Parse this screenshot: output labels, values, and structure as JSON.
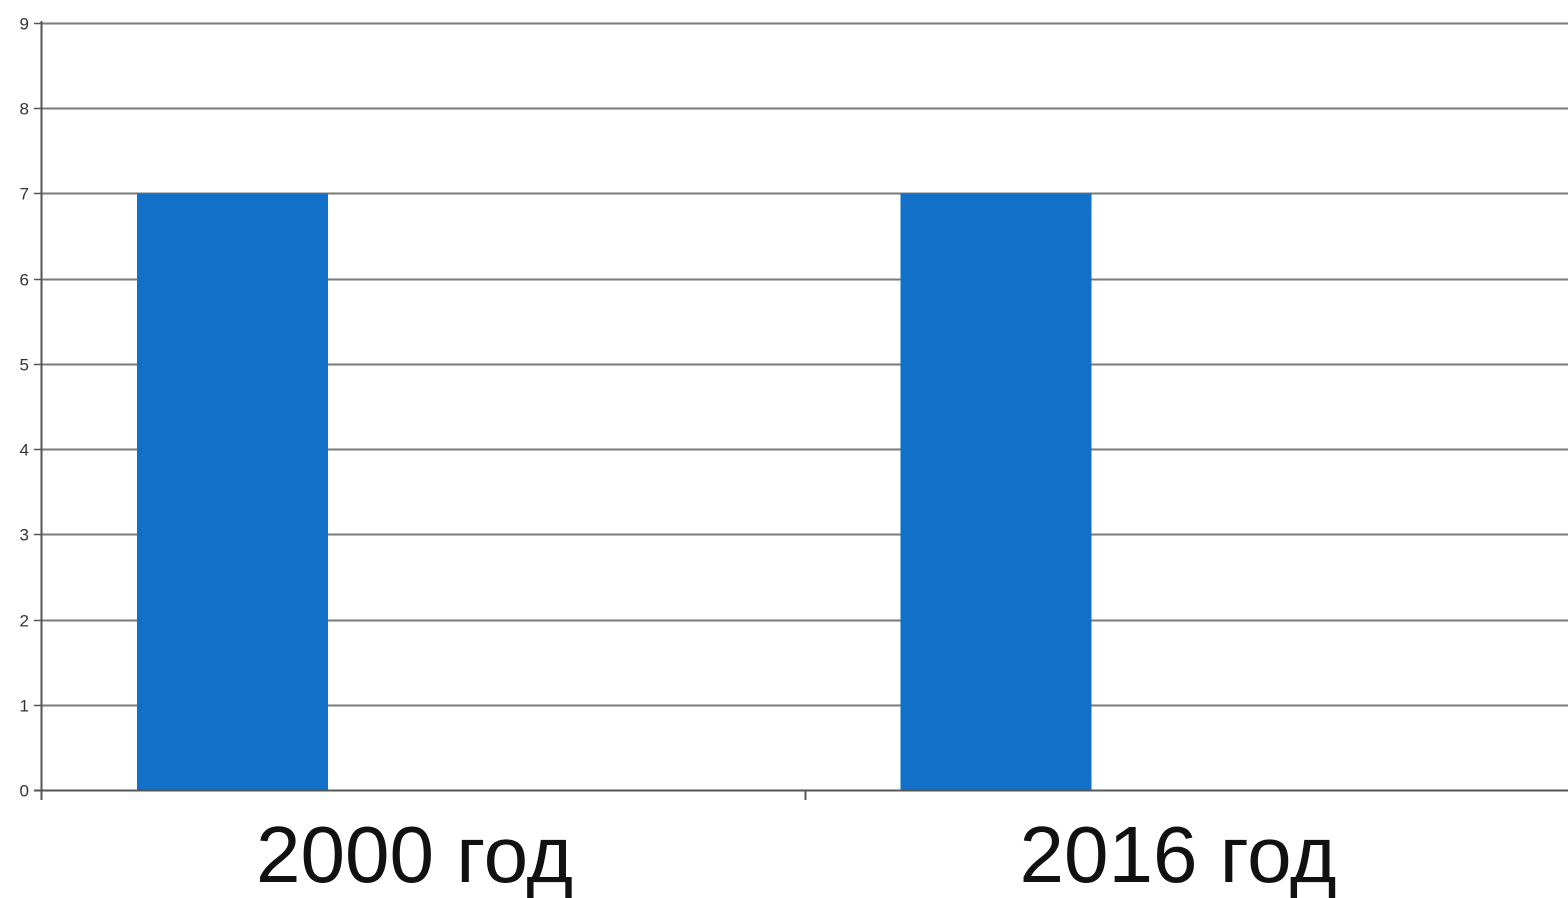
{
  "chart_data": {
    "type": "bar",
    "categories": [
      "2000 год",
      "2016 год"
    ],
    "values": [
      7,
      7
    ],
    "ylim": [
      0,
      9
    ],
    "yticks": [
      0,
      1,
      2,
      3,
      4,
      5,
      6,
      7,
      8,
      9
    ],
    "grid": true,
    "legend": "none",
    "bar_color": "#1270C8",
    "grid_color": "#7a7a7a",
    "axis_color": "#555555"
  }
}
